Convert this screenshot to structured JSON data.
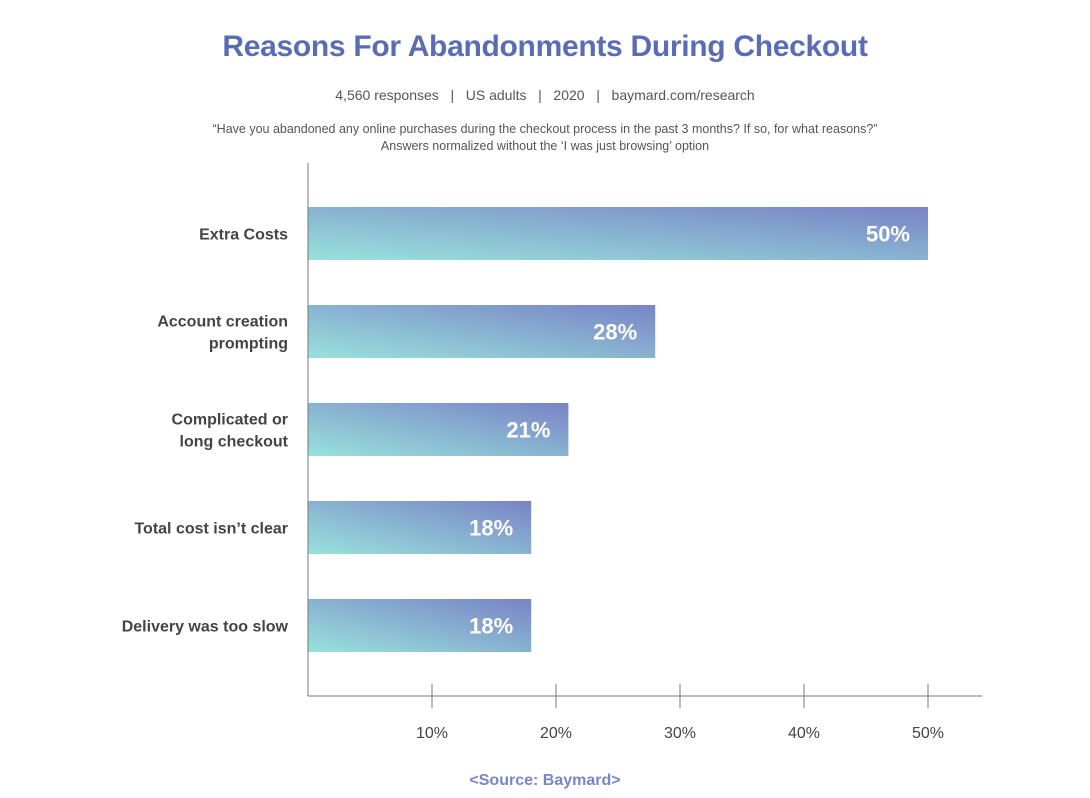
{
  "header": {
    "title": "Reasons For Abandonments During Checkout",
    "meta": "4,560 responses   |   US adults   |   2020   |   baymard.com/research",
    "question_line1": "“Have you abandoned any online purchases during the checkout process in the past 3 months? If so, for what reasons?”",
    "question_line2": "Answers normalized without the ‘I was just browsing’ option"
  },
  "footer": {
    "source": "<Source: Baymard>"
  },
  "colors": {
    "title": "#5a6db4",
    "bar_start": "#98e2dc",
    "bar_end": "#7983c6",
    "source": "#7886c6"
  },
  "chart_data": {
    "type": "bar",
    "orientation": "horizontal",
    "categories": [
      [
        "Extra Costs"
      ],
      [
        "Account creation",
        "prompting"
      ],
      [
        "Complicated or",
        "long checkout"
      ],
      [
        "Total cost isn’t clear"
      ],
      [
        "Delivery was too slow"
      ]
    ],
    "values": [
      50,
      28,
      21,
      18,
      18
    ],
    "value_labels": [
      "50%",
      "28%",
      "21%",
      "18%",
      "18%"
    ],
    "xlim": [
      0,
      54
    ],
    "xticks": [
      10,
      20,
      30,
      40,
      50
    ],
    "xtick_labels": [
      "10%",
      "20%",
      "30%",
      "40%",
      "50%"
    ],
    "grid": false
  }
}
